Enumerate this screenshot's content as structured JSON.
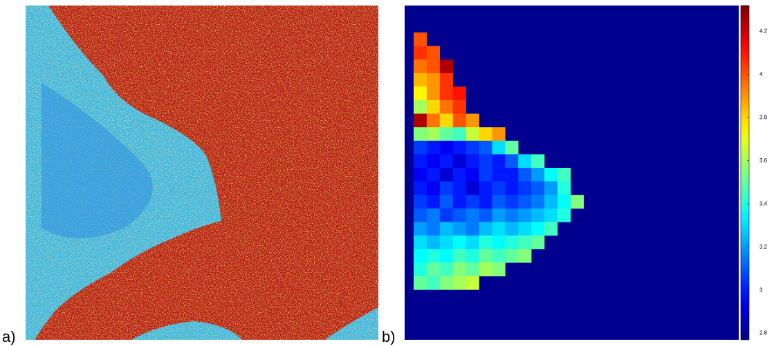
{
  "panel_a": {
    "label": "a)"
  },
  "chart_data": {
    "type": "heatmap",
    "label": "b)",
    "background": "#00008f",
    "clim": [
      2.77,
      4.32
    ],
    "cticks": [
      2.8,
      3,
      3.2,
      3.4,
      3.6,
      3.8,
      4,
      4.2
    ],
    "values": [
      [
        4.0
      ],
      [
        4.05,
        4.0
      ],
      [
        3.95,
        4.0,
        4.25
      ],
      [
        3.85,
        3.9,
        4.05
      ],
      [
        3.75,
        3.9,
        4.05,
        4.1
      ],
      [
        3.6,
        3.8,
        3.95,
        4.05
      ],
      [
        4.25,
        3.95,
        3.8,
        4.0,
        3.9
      ],
      [
        3.55,
        3.6,
        3.5,
        3.45,
        3.65,
        3.8,
        3.9
      ],
      [
        3.05,
        3.0,
        2.95,
        3.0,
        3.05,
        3.1,
        3.3,
        3.5
      ],
      [
        3.0,
        2.95,
        3.0,
        2.9,
        3.0,
        3.05,
        3.0,
        3.1,
        3.3,
        3.45
      ],
      [
        2.95,
        3.0,
        2.9,
        3.0,
        2.95,
        3.05,
        3.0,
        3.0,
        3.1,
        3.2,
        3.35,
        3.45
      ],
      [
        3.0,
        2.95,
        3.05,
        3.0,
        2.9,
        3.0,
        3.05,
        3.0,
        3.05,
        3.1,
        3.2,
        3.4
      ],
      [
        3.05,
        3.0,
        3.1,
        3.0,
        3.05,
        3.0,
        3.1,
        3.05,
        3.1,
        3.15,
        3.25,
        3.35,
        3.55
      ],
      [
        3.1,
        3.15,
        3.05,
        3.1,
        3.15,
        3.1,
        3.2,
        3.15,
        3.2,
        3.25,
        3.3,
        3.4
      ],
      [
        3.2,
        3.15,
        3.25,
        3.2,
        3.15,
        3.25,
        3.3,
        3.25,
        3.3,
        3.35,
        3.45
      ],
      [
        3.3,
        3.25,
        3.3,
        3.35,
        3.3,
        3.4,
        3.35,
        3.4,
        3.45,
        3.5
      ],
      [
        3.35,
        3.4,
        3.35,
        3.45,
        3.4,
        3.5,
        3.45,
        3.5,
        3.55
      ],
      [
        3.4,
        3.5,
        3.45,
        3.55,
        3.5,
        3.6,
        3.55
      ],
      [
        3.5,
        3.45,
        3.55,
        3.6,
        3.65
      ]
    ]
  }
}
